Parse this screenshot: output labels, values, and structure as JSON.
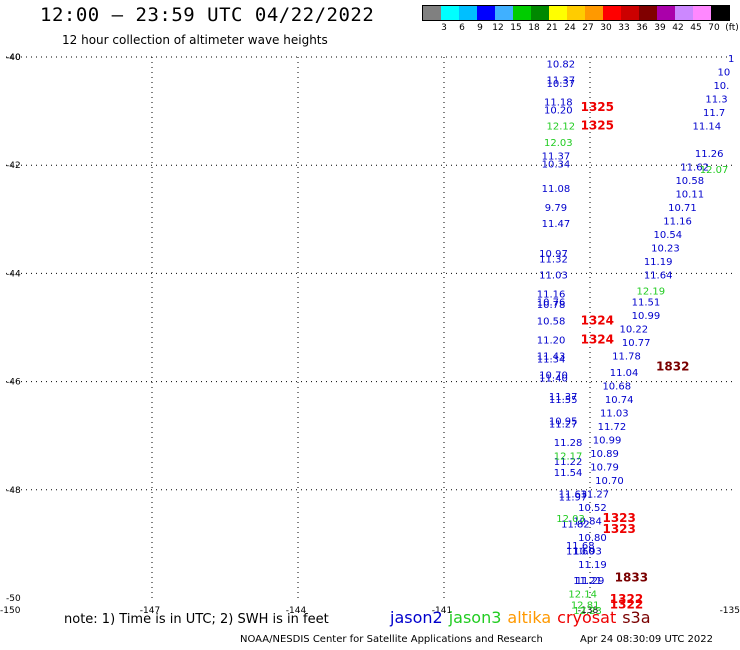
{
  "header": {
    "title": "12:00 – 23:59 UTC 04/22/2022",
    "subtitle": "12 hour collection of altimeter wave heights"
  },
  "colorbar": {
    "colors": [
      "#808080",
      "#00ffff",
      "#00bfff",
      "#0000ff",
      "#40b0ff",
      "#00cc00",
      "#008800",
      "#ffff00",
      "#ffcc00",
      "#ff9900",
      "#ff0000",
      "#cc0000",
      "#800000",
      "#aa00aa",
      "#cc88ff",
      "#ff88ff",
      "#000000"
    ],
    "labels": [
      "3",
      "6",
      "9",
      "12",
      "15",
      "18",
      "21",
      "24",
      "27",
      "30",
      "33",
      "36",
      "39",
      "42",
      "45",
      "70",
      "(ft)"
    ]
  },
  "chart_data": {
    "type": "scatter",
    "title": "12:00 – 23:59 UTC 04/22/2022",
    "subtitle": "12 hour collection of altimeter wave heights",
    "xlabel": "",
    "ylabel": "",
    "xlim": [
      -150,
      -135
    ],
    "ylim": [
      -50,
      -40
    ],
    "x_ticks": [
      -147,
      -144,
      -141,
      -138
    ],
    "y_ticks": [
      -40,
      -42,
      -44,
      -46,
      -48
    ],
    "corner_labels": {
      "y_top": "-40",
      "y_bottom": "-50",
      "x_left": "-150",
      "x_right": "-135"
    },
    "grid": true,
    "series": [
      {
        "name": "jason2",
        "color": "#0000cc",
        "points": [
          {
            "x": -138.6,
            "y": -40.12,
            "v": "10.82"
          },
          {
            "x": -138.6,
            "y": -40.42,
            "v": "11.37"
          },
          {
            "x": -138.6,
            "y": -40.48,
            "v": "10.37"
          },
          {
            "x": -138.65,
            "y": -40.82,
            "v": "11.18"
          },
          {
            "x": -138.65,
            "y": -40.97,
            "v": "10.20"
          },
          {
            "x": -138.7,
            "y": -41.82,
            "v": "11.37"
          },
          {
            "x": -138.7,
            "y": -41.97,
            "v": "10.34"
          },
          {
            "x": -138.7,
            "y": -42.42,
            "v": "11.08"
          },
          {
            "x": -138.7,
            "y": -42.77,
            "v": "9.79"
          },
          {
            "x": -138.7,
            "y": -43.07,
            "v": "11.47"
          },
          {
            "x": -138.75,
            "y": -43.62,
            "v": "10.97"
          },
          {
            "x": -138.75,
            "y": -43.72,
            "v": "11.32"
          },
          {
            "x": -138.75,
            "y": -44.02,
            "v": "11.03"
          },
          {
            "x": -138.8,
            "y": -44.37,
            "v": "11.16"
          },
          {
            "x": -138.8,
            "y": -44.52,
            "v": "10.76"
          },
          {
            "x": -138.8,
            "y": -44.57,
            "v": "10.78"
          },
          {
            "x": -138.8,
            "y": -44.87,
            "v": "10.58"
          },
          {
            "x": -138.8,
            "y": -45.22,
            "v": "11.20"
          },
          {
            "x": -138.8,
            "y": -45.52,
            "v": "11.43"
          },
          {
            "x": -138.8,
            "y": -45.57,
            "v": "11.34"
          },
          {
            "x": -138.75,
            "y": -45.87,
            "v": "10.70"
          },
          {
            "x": -138.75,
            "y": -45.92,
            "v": "11.40"
          },
          {
            "x": -138.55,
            "y": -46.27,
            "v": "11.37"
          },
          {
            "x": -138.55,
            "y": -46.32,
            "v": "11.55"
          },
          {
            "x": -138.55,
            "y": -46.72,
            "v": "10.95"
          },
          {
            "x": -138.55,
            "y": -46.77,
            "v": "11.27"
          },
          {
            "x": -138.45,
            "y": -47.12,
            "v": "11.28"
          },
          {
            "x": -138.45,
            "y": -47.47,
            "v": "11.22"
          },
          {
            "x": -138.45,
            "y": -47.67,
            "v": "11.54"
          },
          {
            "x": -138.35,
            "y": -48.07,
            "v": "11.63"
          },
          {
            "x": -138.35,
            "y": -48.12,
            "v": "11.97"
          },
          {
            "x": -138.3,
            "y": -48.62,
            "v": "11.82"
          },
          {
            "x": -138.05,
            "y": -48.57,
            "v": "10.84"
          },
          {
            "x": -137.95,
            "y": -48.87,
            "v": "10.80"
          },
          {
            "x": -138.2,
            "y": -49.02,
            "v": "11.68"
          },
          {
            "x": -138.05,
            "y": -49.12,
            "v": "10.93"
          },
          {
            "x": -138.2,
            "y": -49.12,
            "v": "11.60"
          },
          {
            "x": -137.95,
            "y": -49.37,
            "v": "11.19"
          },
          {
            "x": -138.05,
            "y": -49.67,
            "v": "11.21"
          },
          {
            "x": -138.0,
            "y": -49.67,
            "v": "11.29"
          },
          {
            "x": -137.95,
            "y": -48.32,
            "v": "10.52"
          },
          {
            "x": -137.9,
            "y": -48.07,
            "v": "11.27"
          },
          {
            "x": -137.6,
            "y": -47.82,
            "v": "10.70"
          },
          {
            "x": -137.7,
            "y": -47.57,
            "v": "10.79"
          },
          {
            "x": -137.7,
            "y": -47.32,
            "v": "10.89"
          },
          {
            "x": -137.65,
            "y": -47.07,
            "v": "10.99"
          },
          {
            "x": -137.55,
            "y": -46.82,
            "v": "11.72"
          },
          {
            "x": -137.5,
            "y": -46.57,
            "v": "11.03"
          },
          {
            "x": -137.4,
            "y": -46.32,
            "v": "10.74"
          },
          {
            "x": -137.45,
            "y": -46.07,
            "v": "10.68"
          },
          {
            "x": -137.3,
            "y": -45.82,
            "v": "11.04"
          },
          {
            "x": -137.25,
            "y": -45.52,
            "v": "11.78"
          },
          {
            "x": -137.05,
            "y": -45.27,
            "v": "10.77"
          },
          {
            "x": -137.1,
            "y": -45.02,
            "v": "10.22"
          },
          {
            "x": -136.85,
            "y": -44.77,
            "v": "10.99"
          },
          {
            "x": -136.85,
            "y": -44.52,
            "v": "11.51"
          },
          {
            "x": -136.6,
            "y": -44.02,
            "v": "11.64"
          },
          {
            "x": -136.6,
            "y": -43.77,
            "v": "11.19"
          },
          {
            "x": -136.45,
            "y": -43.52,
            "v": "10.23"
          },
          {
            "x": -136.4,
            "y": -43.27,
            "v": "10.54"
          },
          {
            "x": -136.2,
            "y": -43.02,
            "v": "11.16"
          },
          {
            "x": -136.1,
            "y": -42.77,
            "v": "10.71"
          },
          {
            "x": -135.95,
            "y": -42.52,
            "v": "10.11"
          },
          {
            "x": -135.95,
            "y": -42.27,
            "v": "10.58"
          },
          {
            "x": -135.85,
            "y": -42.02,
            "v": "11.62"
          },
          {
            "x": -135.55,
            "y": -41.77,
            "v": "11.26"
          },
          {
            "x": -135.6,
            "y": -41.27,
            "v": "11.14"
          },
          {
            "x": -135.45,
            "y": -41.02,
            "v": "11.7"
          },
          {
            "x": -135.4,
            "y": -40.77,
            "v": "11.3"
          },
          {
            "x": -135.3,
            "y": -40.52,
            "v": "10."
          },
          {
            "x": -135.25,
            "y": -40.27,
            "v": "10"
          },
          {
            "x": -135.1,
            "y": -40.02,
            "v": "1"
          }
        ]
      },
      {
        "name": "jason3",
        "color": "#22cc22",
        "points": [
          {
            "x": -138.6,
            "y": -41.27,
            "v": "12.12"
          },
          {
            "x": -138.65,
            "y": -41.57,
            "v": "12.03"
          },
          {
            "x": -135.45,
            "y": -42.07,
            "v": "12.07"
          },
          {
            "x": -136.75,
            "y": -44.32,
            "v": "12.19"
          },
          {
            "x": -138.45,
            "y": -47.37,
            "v": "12.17"
          },
          {
            "x": -138.4,
            "y": -48.52,
            "v": "12.03"
          },
          {
            "x": -138.15,
            "y": -49.92,
            "v": "12.14"
          },
          {
            "x": -138.1,
            "y": -50.12,
            "v": "12.81"
          },
          {
            "x": -138.05,
            "y": -50.22,
            "v": "12.23"
          }
        ]
      },
      {
        "name": "altika",
        "color": "#ff9900",
        "points": []
      },
      {
        "name": "cryosat",
        "color": "#ee0000",
        "points": [
          {
            "x": -137.85,
            "y": -40.92,
            "v": "1325"
          },
          {
            "x": -137.85,
            "y": -41.27,
            "v": "1325"
          },
          {
            "x": -137.85,
            "y": -44.87,
            "v": "1324"
          },
          {
            "x": -137.85,
            "y": -45.22,
            "v": "1324"
          },
          {
            "x": -137.4,
            "y": -48.52,
            "v": "1323"
          },
          {
            "x": -137.4,
            "y": -48.72,
            "v": "1323"
          },
          {
            "x": -137.25,
            "y": -50.02,
            "v": "1322"
          },
          {
            "x": -137.25,
            "y": -50.12,
            "v": "1322"
          }
        ]
      },
      {
        "name": "s3a",
        "color": "#7a0000",
        "points": [
          {
            "x": -136.3,
            "y": -45.72,
            "v": "1832"
          },
          {
            "x": -137.15,
            "y": -49.62,
            "v": "1833"
          }
        ]
      }
    ]
  },
  "note": "note:  1) Time is in UTC;  2) SWH is in feet",
  "legend": [
    {
      "label": "jason2",
      "color": "#0000cc"
    },
    {
      "label": "jason3",
      "color": "#22cc22"
    },
    {
      "label": "altika",
      "color": "#ff9900"
    },
    {
      "label": "cryosat",
      "color": "#ee0000"
    },
    {
      "label": "s3a",
      "color": "#7a0000"
    }
  ],
  "footer": {
    "credit": "NOAA/NESDIS Center for Satellite Applications and Research",
    "timestamp": "Apr 24 08:30:09 UTC 2022"
  }
}
